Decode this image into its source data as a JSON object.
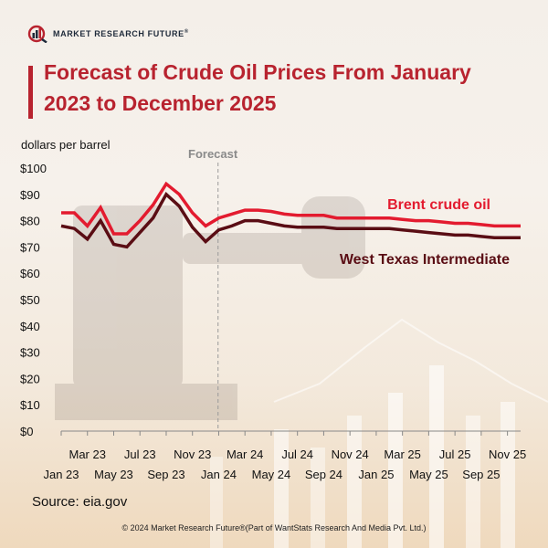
{
  "brand": {
    "name": "MARKET RESEARCH FUTURE",
    "mark": "®",
    "logo_icon": "bar-chart-magnifier-icon"
  },
  "title_line1": "Forecast of Crude Oil Prices From January",
  "title_line2": "2023 to December 2025",
  "source": "Source: eia.gov",
  "copyright": "© 2024 Market Research Future®(Part of WantStats Research And Media Pvt. Ltd.)",
  "colors": {
    "brent": "#e31b2f",
    "wti": "#5a0d14",
    "title": "#b8232f",
    "forecast_line": "#9a9a9a"
  },
  "chart_data": {
    "type": "line",
    "title": "Forecast of Crude Oil Prices From January 2023 to December 2025",
    "ylabel": "dollars per barrel",
    "xlabel": "",
    "ylim": [
      0,
      100
    ],
    "yticks": [
      "$0",
      "$10",
      "$20",
      "$30",
      "$40",
      "$50",
      "$60",
      "$70",
      "$80",
      "$90",
      "$100"
    ],
    "x_labels_top": [
      "Mar 23",
      "Jul 23",
      "Nov 23",
      "Mar 24",
      "Jul 24",
      "Nov 24",
      "Mar 25",
      "Jul 25",
      "Nov 25"
    ],
    "x_labels_bottom": [
      "Jan 23",
      "May 23",
      "Sep 23",
      "Jan 24",
      "May 24",
      "Sep 24",
      "Jan 25",
      "May 25",
      "Sep 25"
    ],
    "forecast_label": "Forecast",
    "forecast_start_index": 12,
    "grid": false,
    "series": [
      {
        "name": "Brent crude oil",
        "values": [
          83,
          83,
          78,
          85,
          75,
          75,
          80,
          86,
          94,
          90,
          83,
          78,
          81,
          82.5,
          84,
          84,
          83.5,
          82.5,
          82,
          82,
          82,
          81,
          81,
          81,
          81,
          81,
          80.5,
          80,
          80,
          79.5,
          79,
          79,
          78.5,
          78,
          78,
          78
        ]
      },
      {
        "name": "West Texas Intermediate",
        "values": [
          78,
          77,
          73,
          80,
          71,
          70,
          75.5,
          81,
          90,
          85.5,
          77.5,
          72,
          76.5,
          78,
          80,
          80,
          79,
          78,
          77.5,
          77.5,
          77.5,
          77,
          77,
          77,
          77,
          77,
          76.5,
          76,
          75.5,
          75,
          74.5,
          74.5,
          74,
          73.5,
          73.5,
          73.5
        ]
      }
    ]
  }
}
